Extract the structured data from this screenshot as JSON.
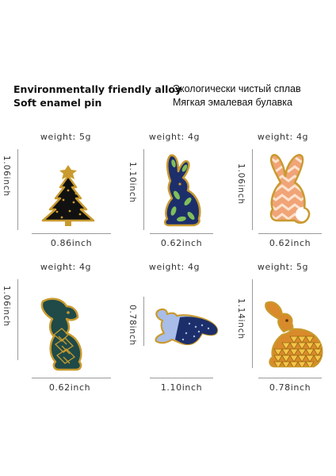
{
  "heading_en": [
    "Environmentally friendly alloy",
    "Soft enamel pin"
  ],
  "heading_ru": [
    "Экологически чистый сплав",
    "Мягкая эмалевая булавка"
  ],
  "pins": [
    {
      "weight": "weight: 5g",
      "height": "1.06inch",
      "width": "0.86inch",
      "icon": "christmas-tree-pin-icon"
    },
    {
      "weight": "weight: 4g",
      "height": "1.10inch",
      "width": "0.62inch",
      "icon": "leaf-rabbit-pin-icon"
    },
    {
      "weight": "weight: 4g",
      "height": "1.06inch",
      "width": "0.62inch",
      "icon": "zigzag-rabbit-pin-icon"
    },
    {
      "weight": "weight: 4g",
      "height": "1.06inch",
      "width": "0.62inch",
      "icon": "green-rabbit-pin-icon"
    },
    {
      "weight": "weight: 4g",
      "height": "0.78inch",
      "width": "1.10inch",
      "icon": "jumping-rabbit-pin-icon"
    },
    {
      "weight": "weight: 5g",
      "height": "1.14inch",
      "width": "0.78inch",
      "icon": "triangle-rabbit-pin-icon"
    }
  ],
  "colors": {
    "gold": "#c99a2e",
    "navy": "#1d2f6b",
    "pine": "#1f4a48",
    "coral": "#f0a477",
    "orange": "#d98a2a"
  }
}
